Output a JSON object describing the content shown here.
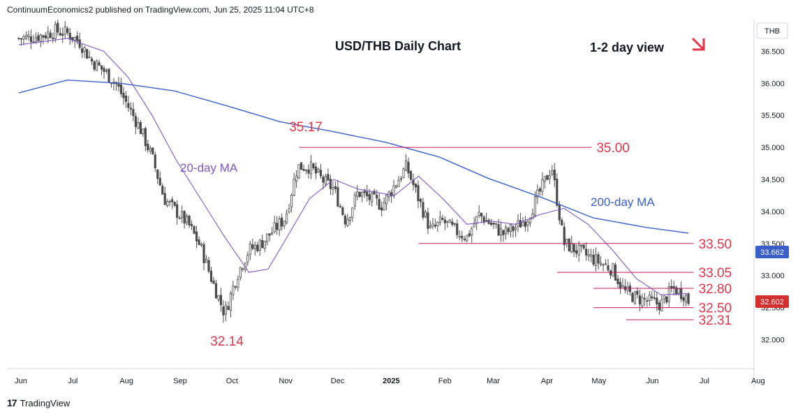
{
  "header": {
    "publisher": "ContinuumEconomics2 published on TradingView.com, Jun 25, 2025 11:04 UTC+8"
  },
  "footer": {
    "brand": "TradingView",
    "logo_glyph": "17"
  },
  "colors": {
    "candle": "#4a4a4a",
    "ma20": "#7e57c2",
    "ma200": "#3a5fc8",
    "level_line": "#c2185b",
    "level_text": "#e3344a",
    "current_price_bg": "#d32f2f"
  },
  "chart_data": {
    "type": "candlestick",
    "title": "USD/THB Daily Chart",
    "subtitle": "1-2 day view",
    "currency_label": "THB",
    "ylim": [
      31.6,
      37.0
    ],
    "y_ticks": [
      "36.500",
      "36.000",
      "35.500",
      "35.000",
      "34.500",
      "34.000",
      "33.500",
      "33.000",
      "32.500",
      "32.000"
    ],
    "x_ticks": [
      "Jun",
      "Jul",
      "Aug",
      "Sep",
      "Oct",
      "Nov",
      "Dec",
      "2025",
      "Feb",
      "Mar",
      "Apr",
      "May",
      "Jun",
      "Jul",
      "Aug"
    ],
    "current_price": "32.602",
    "ma200_last": "33.662",
    "annotations": [
      {
        "text": "35.17",
        "kind": "high"
      },
      {
        "text": "32.14",
        "kind": "low"
      },
      {
        "text": "20-day MA",
        "kind": "ma20"
      },
      {
        "text": "200-day MA",
        "kind": "ma200"
      }
    ],
    "levels": [
      {
        "label": "35.00",
        "value": 35.0,
        "from": "2024-11-12",
        "to": "2025-04-30"
      },
      {
        "label": "33.50",
        "value": 33.5,
        "from": "2025-01-20",
        "to": "2025-06-28"
      },
      {
        "label": "33.05",
        "value": 33.05,
        "from": "2025-04-10",
        "to": "2025-06-28"
      },
      {
        "label": "32.80",
        "value": 32.8,
        "from": "2025-05-01",
        "to": "2025-06-28"
      },
      {
        "label": "32.50",
        "value": 32.5,
        "from": "2025-05-01",
        "to": "2025-06-28"
      },
      {
        "label": "32.31",
        "value": 32.31,
        "from": "2025-05-20",
        "to": "2025-06-28"
      }
    ],
    "close_path": [
      [
        "2024-06-03",
        36.7
      ],
      [
        "2024-06-10",
        36.72
      ],
      [
        "2024-06-17",
        36.75
      ],
      [
        "2024-06-24",
        36.82
      ],
      [
        "2024-07-01",
        36.78
      ],
      [
        "2024-07-08",
        36.65
      ],
      [
        "2024-07-15",
        36.35
      ],
      [
        "2024-07-22",
        36.2
      ],
      [
        "2024-07-29",
        36.0
      ],
      [
        "2024-08-05",
        35.65
      ],
      [
        "2024-08-12",
        35.3
      ],
      [
        "2024-08-19",
        34.85
      ],
      [
        "2024-08-26",
        34.2
      ],
      [
        "2024-09-02",
        34.0
      ],
      [
        "2024-09-09",
        33.8
      ],
      [
        "2024-09-16",
        33.45
      ],
      [
        "2024-09-23",
        32.9
      ],
      [
        "2024-09-30",
        32.4
      ],
      [
        "2024-10-07",
        33.0
      ],
      [
        "2024-10-14",
        33.4
      ],
      [
        "2024-10-21",
        33.5
      ],
      [
        "2024-10-28",
        33.7
      ],
      [
        "2024-11-04",
        33.9
      ],
      [
        "2024-11-11",
        34.7
      ],
      [
        "2024-11-18",
        34.7
      ],
      [
        "2024-11-25",
        34.5
      ],
      [
        "2024-12-02",
        34.35
      ],
      [
        "2024-12-09",
        33.85
      ],
      [
        "2024-12-16",
        34.3
      ],
      [
        "2024-12-23",
        34.2
      ],
      [
        "2024-12-30",
        34.1
      ],
      [
        "2025-01-06",
        34.4
      ],
      [
        "2025-01-13",
        34.7
      ],
      [
        "2025-01-20",
        34.2
      ],
      [
        "2025-01-27",
        33.7
      ],
      [
        "2025-02-03",
        33.85
      ],
      [
        "2025-02-10",
        33.7
      ],
      [
        "2025-02-17",
        33.6
      ],
      [
        "2025-02-24",
        33.95
      ],
      [
        "2025-03-03",
        33.8
      ],
      [
        "2025-03-10",
        33.65
      ],
      [
        "2025-03-17",
        33.75
      ],
      [
        "2025-03-24",
        33.9
      ],
      [
        "2025-03-31",
        34.3
      ],
      [
        "2025-04-07",
        34.7
      ],
      [
        "2025-04-14",
        33.5
      ],
      [
        "2025-04-21",
        33.4
      ],
      [
        "2025-04-28",
        33.3
      ],
      [
        "2025-05-05",
        33.2
      ],
      [
        "2025-05-12",
        33.1
      ],
      [
        "2025-05-19",
        32.75
      ],
      [
        "2025-05-26",
        32.65
      ],
      [
        "2025-06-02",
        32.6
      ],
      [
        "2025-06-09",
        32.55
      ],
      [
        "2025-06-16",
        32.8
      ],
      [
        "2025-06-23",
        32.7
      ],
      [
        "2025-06-25",
        32.6
      ]
    ],
    "ma20_path": [
      [
        "2024-06-03",
        36.6
      ],
      [
        "2024-07-01",
        36.7
      ],
      [
        "2024-07-22",
        36.5
      ],
      [
        "2024-08-05",
        36.1
      ],
      [
        "2024-08-19",
        35.5
      ],
      [
        "2024-09-02",
        34.8
      ],
      [
        "2024-09-16",
        34.2
      ],
      [
        "2024-09-30",
        33.6
      ],
      [
        "2024-10-14",
        33.05
      ],
      [
        "2024-10-25",
        33.1
      ],
      [
        "2024-11-05",
        33.6
      ],
      [
        "2024-11-18",
        34.2
      ],
      [
        "2024-12-02",
        34.5
      ],
      [
        "2024-12-16",
        34.35
      ],
      [
        "2025-01-06",
        34.25
      ],
      [
        "2025-01-20",
        34.55
      ],
      [
        "2025-02-03",
        34.2
      ],
      [
        "2025-02-17",
        33.8
      ],
      [
        "2025-03-03",
        33.85
      ],
      [
        "2025-03-17",
        33.8
      ],
      [
        "2025-03-31",
        33.95
      ],
      [
        "2025-04-14",
        34.05
      ],
      [
        "2025-04-28",
        33.8
      ],
      [
        "2025-05-12",
        33.4
      ],
      [
        "2025-05-26",
        32.95
      ],
      [
        "2025-06-09",
        32.7
      ],
      [
        "2025-06-25",
        32.72
      ]
    ],
    "ma200_path": [
      [
        "2024-06-03",
        35.85
      ],
      [
        "2024-07-01",
        36.05
      ],
      [
        "2024-08-01",
        36.0
      ],
      [
        "2024-09-01",
        35.88
      ],
      [
        "2024-10-01",
        35.65
      ],
      [
        "2024-11-01",
        35.4
      ],
      [
        "2024-12-01",
        35.25
      ],
      [
        "2025-01-01",
        35.08
      ],
      [
        "2025-02-01",
        34.85
      ],
      [
        "2025-03-01",
        34.52
      ],
      [
        "2025-04-01",
        34.22
      ],
      [
        "2025-05-01",
        33.9
      ],
      [
        "2025-06-01",
        33.75
      ],
      [
        "2025-06-25",
        33.662
      ]
    ]
  }
}
